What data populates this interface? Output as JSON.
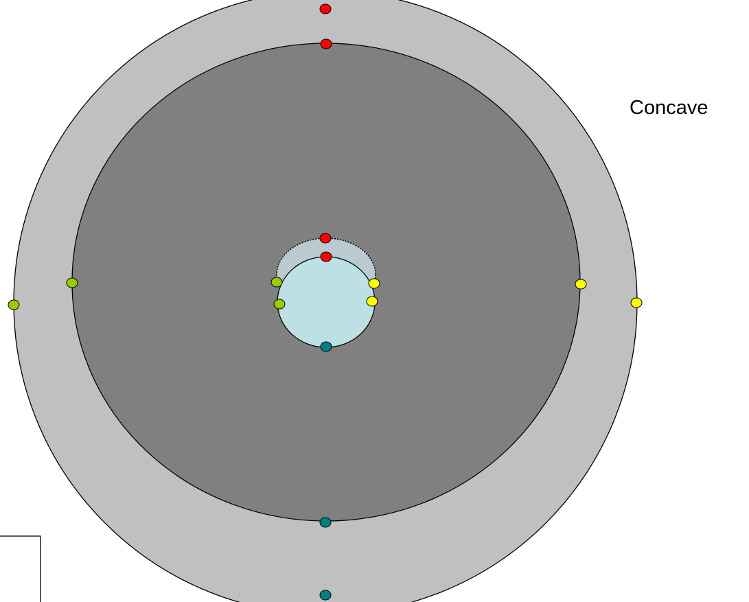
{
  "label": "Concave",
  "colors": {
    "outer_ring": "#c0c0c0",
    "inner_disk": "#808080",
    "core_circle": "#bde0e4",
    "crescent_fill": "#b3c6cc",
    "outline": "#000000",
    "marker_red": "#ff0000",
    "marker_green": "#99cc00",
    "marker_yellow": "#ffff00",
    "marker_teal": "#008080"
  },
  "markers": {
    "top": "red",
    "left": "green",
    "right": "yellow",
    "bottom": "teal"
  }
}
